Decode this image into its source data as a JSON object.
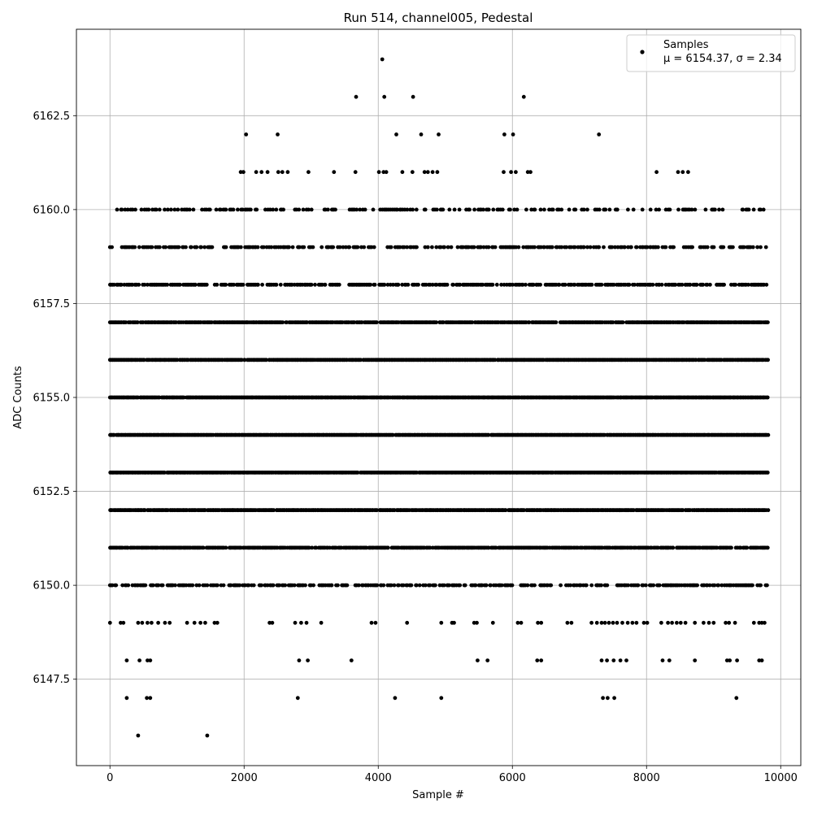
{
  "chart_data": {
    "type": "scatter",
    "title": "Run 514, channel005, Pedestal",
    "xlabel": "Sample #",
    "ylabel": "ADC Counts",
    "xlim": [
      -500,
      10300
    ],
    "ylim": [
      6145.2,
      6164.8
    ],
    "x_ticks": [
      0,
      2000,
      4000,
      6000,
      8000,
      10000
    ],
    "y_ticks": [
      6147.5,
      6150.0,
      6152.5,
      6155.0,
      6157.5,
      6160.0,
      6162.5
    ],
    "grid": true,
    "marker_color": "#000000",
    "legend": {
      "placement": "top-right",
      "entries": [
        {
          "label": "Samples",
          "stats": "μ = 6154.37, σ = 2.34"
        }
      ]
    },
    "series": [
      {
        "name": "Samples",
        "dense_levels": {
          "x_range": [
            0,
            9820
          ],
          "levels": [
            6150,
            6151,
            6152,
            6153,
            6154,
            6155,
            6156,
            6157,
            6158,
            6159,
            6160
          ],
          "fill_fraction": [
            0.55,
            0.85,
            0.95,
            0.98,
            0.99,
            0.98,
            0.97,
            0.9,
            0.6,
            0.45,
            0.3
          ]
        },
        "points": [
          [
            4060,
            6164
          ],
          [
            3670,
            6163
          ],
          [
            4090,
            6163
          ],
          [
            4520,
            6163
          ],
          [
            6170,
            6163
          ],
          [
            2030,
            6162
          ],
          [
            2500,
            6162
          ],
          [
            4270,
            6162
          ],
          [
            4640,
            6162
          ],
          [
            4900,
            6162
          ],
          [
            5880,
            6162
          ],
          [
            6010,
            6162
          ],
          [
            7290,
            6162
          ],
          [
            1950,
            6161
          ],
          [
            1990,
            6161
          ],
          [
            2180,
            6161
          ],
          [
            2260,
            6161
          ],
          [
            2350,
            6161
          ],
          [
            2510,
            6161
          ],
          [
            2570,
            6161
          ],
          [
            2650,
            6161
          ],
          [
            2960,
            6161
          ],
          [
            3340,
            6161
          ],
          [
            3660,
            6161
          ],
          [
            4010,
            6161
          ],
          [
            4080,
            6161
          ],
          [
            4120,
            6161
          ],
          [
            4360,
            6161
          ],
          [
            4510,
            6161
          ],
          [
            4690,
            6161
          ],
          [
            4740,
            6161
          ],
          [
            4810,
            6161
          ],
          [
            4880,
            6161
          ],
          [
            5870,
            6161
          ],
          [
            5980,
            6161
          ],
          [
            6050,
            6161
          ],
          [
            6230,
            6161
          ],
          [
            6270,
            6161
          ],
          [
            8150,
            6161
          ],
          [
            8470,
            6161
          ],
          [
            8540,
            6161
          ],
          [
            8620,
            6161
          ],
          [
            0,
            6149
          ],
          [
            160,
            6149
          ],
          [
            200,
            6149
          ],
          [
            420,
            6149
          ],
          [
            480,
            6149
          ],
          [
            560,
            6149
          ],
          [
            620,
            6149
          ],
          [
            720,
            6149
          ],
          [
            820,
            6149
          ],
          [
            890,
            6149
          ],
          [
            1150,
            6149
          ],
          [
            1260,
            6149
          ],
          [
            1350,
            6149
          ],
          [
            1420,
            6149
          ],
          [
            1560,
            6149
          ],
          [
            1600,
            6149
          ],
          [
            2380,
            6149
          ],
          [
            2420,
            6149
          ],
          [
            2760,
            6149
          ],
          [
            2850,
            6149
          ],
          [
            2930,
            6149
          ],
          [
            3150,
            6149
          ],
          [
            3900,
            6149
          ],
          [
            3960,
            6149
          ],
          [
            4430,
            6149
          ],
          [
            4940,
            6149
          ],
          [
            5100,
            6149
          ],
          [
            5130,
            6149
          ],
          [
            5430,
            6149
          ],
          [
            5470,
            6149
          ],
          [
            5710,
            6149
          ],
          [
            6080,
            6149
          ],
          [
            6130,
            6149
          ],
          [
            6380,
            6149
          ],
          [
            6430,
            6149
          ],
          [
            6820,
            6149
          ],
          [
            6880,
            6149
          ],
          [
            7180,
            6149
          ],
          [
            7260,
            6149
          ],
          [
            7330,
            6149
          ],
          [
            7380,
            6149
          ],
          [
            7440,
            6149
          ],
          [
            7500,
            6149
          ],
          [
            7560,
            6149
          ],
          [
            7640,
            6149
          ],
          [
            7720,
            6149
          ],
          [
            7790,
            6149
          ],
          [
            7850,
            6149
          ],
          [
            7960,
            6149
          ],
          [
            8010,
            6149
          ],
          [
            8220,
            6149
          ],
          [
            8320,
            6149
          ],
          [
            8380,
            6149
          ],
          [
            8450,
            6149
          ],
          [
            8510,
            6149
          ],
          [
            8580,
            6149
          ],
          [
            8720,
            6149
          ],
          [
            8850,
            6149
          ],
          [
            8930,
            6149
          ],
          [
            9000,
            6149
          ],
          [
            9180,
            6149
          ],
          [
            9230,
            6149
          ],
          [
            9320,
            6149
          ],
          [
            9600,
            6149
          ],
          [
            9680,
            6149
          ],
          [
            9720,
            6149
          ],
          [
            9760,
            6149
          ],
          [
            250,
            6148
          ],
          [
            440,
            6148
          ],
          [
            560,
            6148
          ],
          [
            600,
            6148
          ],
          [
            2820,
            6148
          ],
          [
            2950,
            6148
          ],
          [
            3600,
            6148
          ],
          [
            5480,
            6148
          ],
          [
            5630,
            6148
          ],
          [
            6370,
            6148
          ],
          [
            6430,
            6148
          ],
          [
            7330,
            6148
          ],
          [
            7410,
            6148
          ],
          [
            7510,
            6148
          ],
          [
            7610,
            6148
          ],
          [
            7700,
            6148
          ],
          [
            8240,
            6148
          ],
          [
            8340,
            6148
          ],
          [
            8720,
            6148
          ],
          [
            9200,
            6148
          ],
          [
            9240,
            6148
          ],
          [
            9350,
            6148
          ],
          [
            9680,
            6148
          ],
          [
            9720,
            6148
          ],
          [
            250,
            6147
          ],
          [
            550,
            6147
          ],
          [
            600,
            6147
          ],
          [
            2800,
            6147
          ],
          [
            4250,
            6147
          ],
          [
            4940,
            6147
          ],
          [
            7350,
            6147
          ],
          [
            7420,
            6147
          ],
          [
            7520,
            6147
          ],
          [
            9340,
            6147
          ],
          [
            420,
            6146
          ],
          [
            1450,
            6146
          ]
        ]
      }
    ]
  }
}
